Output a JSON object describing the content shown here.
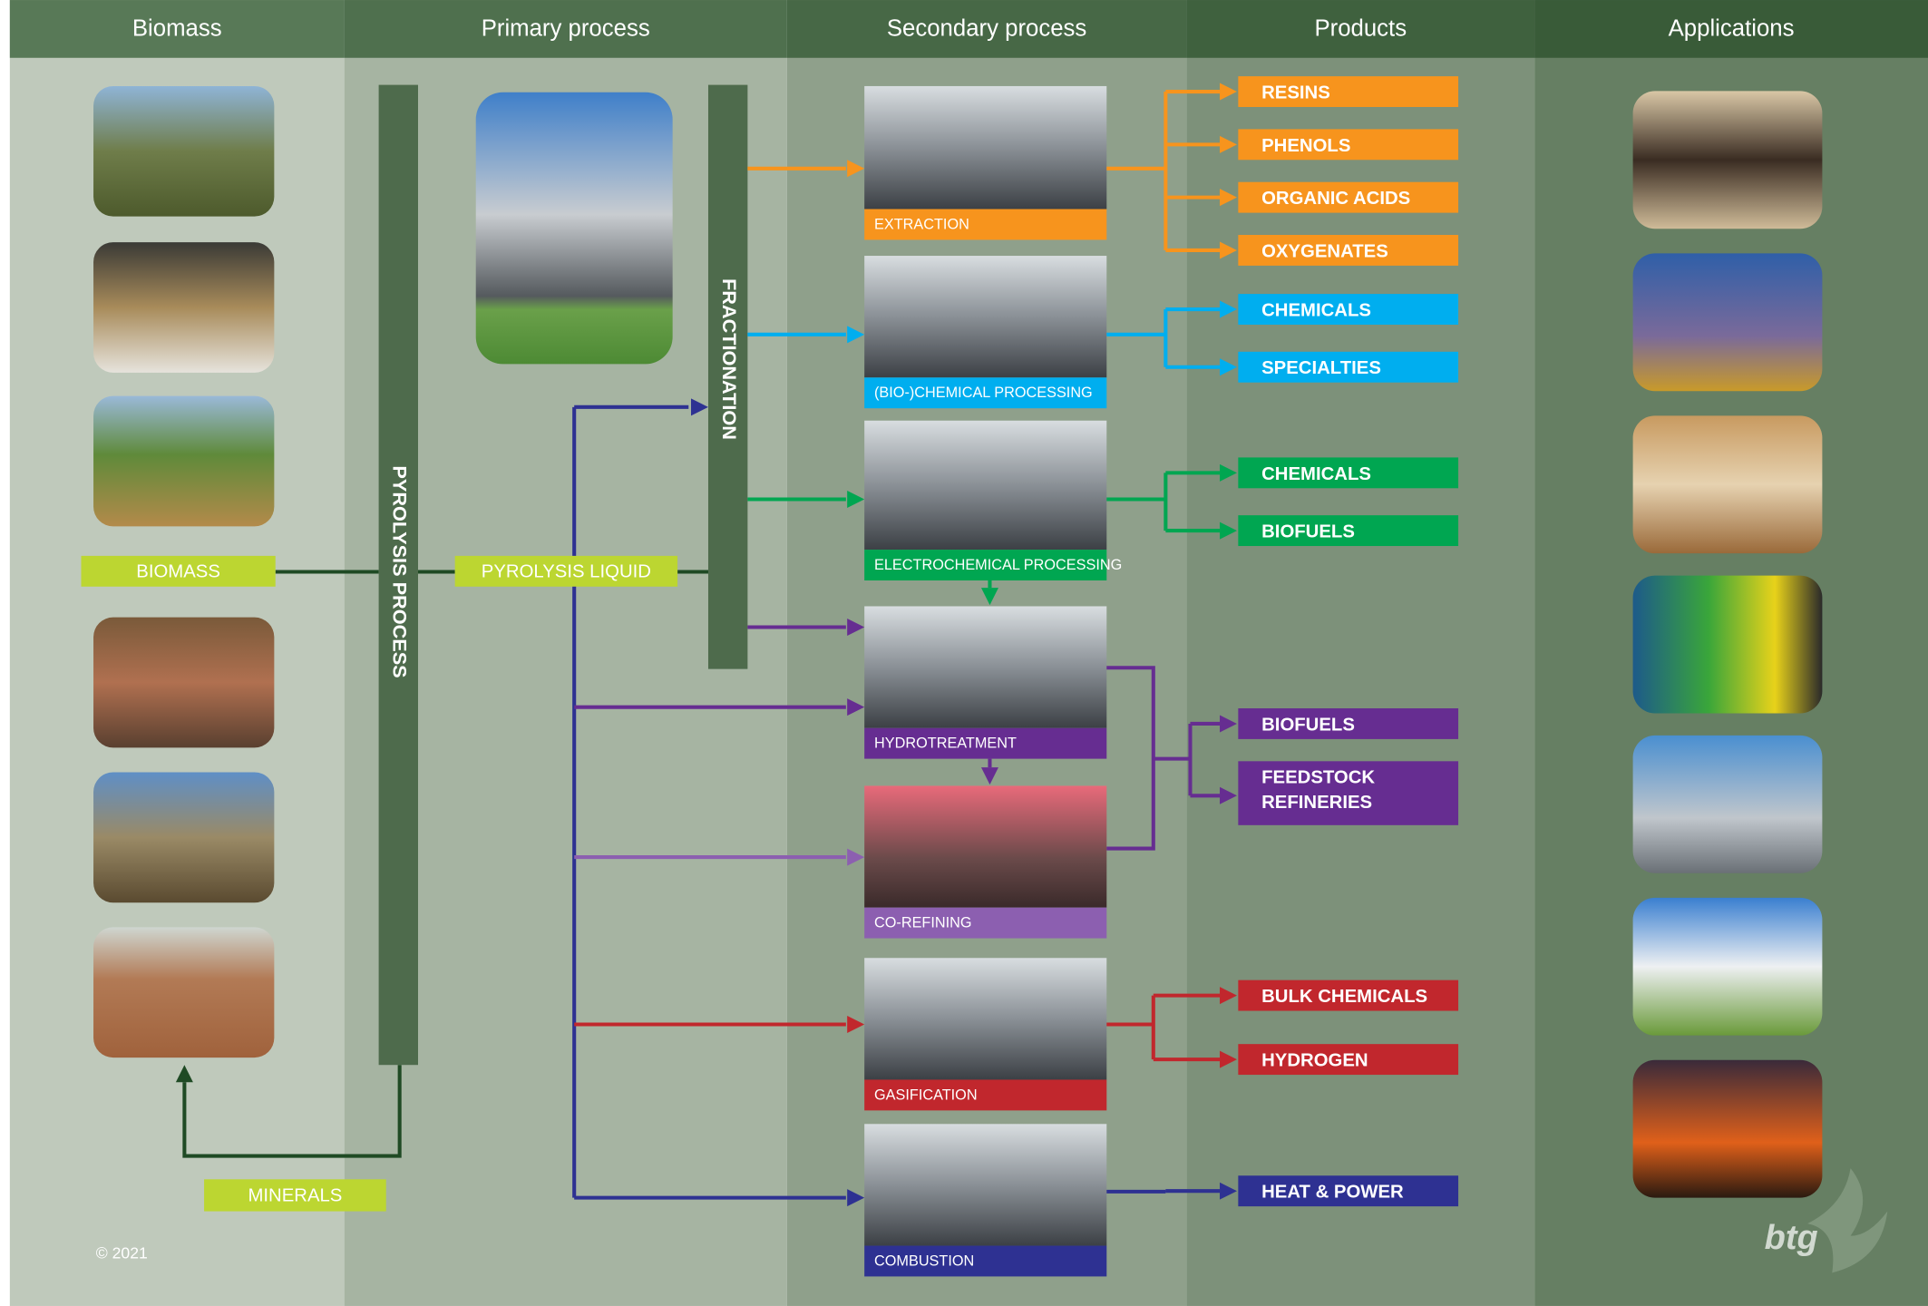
{
  "columns": [
    "Biomass",
    "Primary process",
    "Secondary process",
    "Products",
    "Applications"
  ],
  "inputs": {
    "biomass": "BIOMASS",
    "minerals": "MINERALS"
  },
  "primary": {
    "process": "PYROLYSIS PROCESS",
    "output": "PYROLYSIS LIQUID",
    "fractionation": "FRACTIONATION"
  },
  "processes": [
    {
      "label": "EXTRACTION",
      "color": "#f7941d"
    },
    {
      "label": "(BIO-)CHEMICAL PROCESSING",
      "color": "#00aeef"
    },
    {
      "label": "ELECTROCHEMICAL PROCESSING",
      "color": "#00a651"
    },
    {
      "label": "HYDROTREATMENT",
      "color": "#662d91"
    },
    {
      "label": "CO-REFINING",
      "color": "#8c5fb0"
    },
    {
      "label": "GASIFICATION",
      "color": "#c1272d"
    },
    {
      "label": "COMBUSTION",
      "color": "#2e3192"
    }
  ],
  "product_groups": [
    {
      "color": "#f7941d",
      "items": [
        [
          "RESINS"
        ],
        [
          "PHENOLS"
        ],
        [
          "ORGANIC ACIDS"
        ],
        [
          "OXYGENATES"
        ]
      ]
    },
    {
      "color": "#00aeef",
      "items": [
        [
          "CHEMICALS"
        ],
        [
          "SPECIALTIES"
        ]
      ]
    },
    {
      "color": "#00a651",
      "items": [
        [
          "CHEMICALS"
        ],
        [
          "BIOFUELS"
        ]
      ]
    },
    {
      "color": "#662d91",
      "items": [
        [
          "BIOFUELS"
        ],
        [
          "FEEDSTOCK",
          "REFINERIES"
        ]
      ]
    },
    {
      "color": "#c1272d",
      "items": [
        [
          "BULK CHEMICALS"
        ],
        [
          "HYDROGEN"
        ]
      ]
    },
    {
      "color": "#2e3192",
      "items": [
        [
          "HEAT & POWER"
        ]
      ]
    }
  ],
  "footer": {
    "copyright": "© 2021",
    "logo": "btg"
  }
}
